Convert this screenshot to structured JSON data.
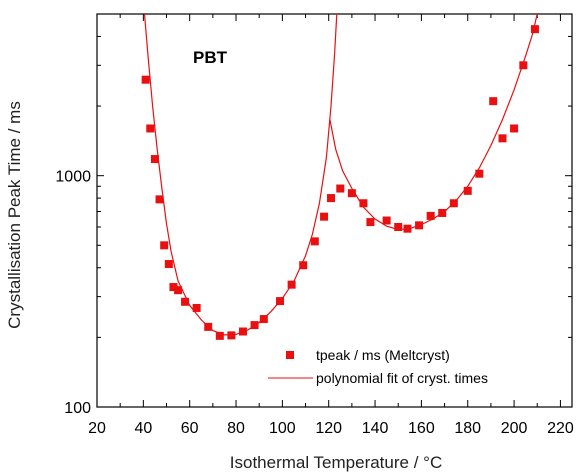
{
  "chart_data": {
    "type": "scatter",
    "title": "",
    "annotation": "PBT",
    "xlabel": "Isothermal Temperature / °C",
    "ylabel": "Crystallisation Peak Time / ms",
    "xlim": [
      20,
      225
    ],
    "ylim": [
      100,
      5000
    ],
    "yscale": "log",
    "xticks": [
      20,
      40,
      60,
      80,
      100,
      120,
      140,
      160,
      180,
      200,
      220
    ],
    "yticks": [
      100,
      1000
    ],
    "xtick_labels": [
      "20",
      "40",
      "60",
      "80",
      "100",
      "120",
      "140",
      "160",
      "180",
      "200",
      "220"
    ],
    "ytick_labels": [
      "100",
      "1000"
    ],
    "grid": false,
    "legend_position": "bottom-right",
    "colors": {
      "series": "#e81010",
      "axis": "#000000"
    },
    "series": [
      {
        "name": "tpeak / ms (Meltcryst)",
        "kind": "scatter",
        "marker": "square",
        "points": [
          [
            41,
            2600
          ],
          [
            43,
            1600
          ],
          [
            45,
            1180
          ],
          [
            47,
            790
          ],
          [
            49,
            500
          ],
          [
            51,
            415
          ],
          [
            53,
            330
          ],
          [
            55,
            320
          ],
          [
            58,
            285
          ],
          [
            63,
            268
          ],
          [
            68,
            222
          ],
          [
            73,
            203
          ],
          [
            78,
            204
          ],
          [
            83,
            212
          ],
          [
            88,
            226
          ],
          [
            92,
            240
          ],
          [
            99,
            287
          ],
          [
            104,
            338
          ],
          [
            109,
            410
          ],
          [
            114,
            520
          ],
          [
            118,
            665
          ],
          [
            121,
            800
          ],
          [
            125,
            880
          ],
          [
            130,
            840
          ],
          [
            135,
            760
          ],
          [
            138,
            630
          ],
          [
            145,
            640
          ],
          [
            150,
            600
          ],
          [
            154,
            590
          ],
          [
            159,
            610
          ],
          [
            164,
            670
          ],
          [
            169,
            690
          ],
          [
            174,
            760
          ],
          [
            180,
            860
          ],
          [
            185,
            1020
          ],
          [
            191,
            2100
          ],
          [
            195,
            1450
          ],
          [
            200,
            1600
          ],
          [
            204,
            3000
          ],
          [
            209,
            4300
          ]
        ]
      },
      {
        "name": "polynomial fit of cryst. times",
        "kind": "line",
        "segments": [
          [
            [
              40.5,
              5000
            ],
            [
              42,
              3300
            ],
            [
              44,
              2000
            ],
            [
              46,
              1300
            ],
            [
              48,
              880
            ],
            [
              50,
              620
            ],
            [
              52,
              470
            ],
            [
              55,
              350
            ],
            [
              60,
              275
            ],
            [
              65,
              238
            ],
            [
              70,
              214
            ],
            [
              75,
              205
            ],
            [
              80,
              206
            ],
            [
              85,
              215
            ],
            [
              90,
              232
            ],
            [
              95,
              258
            ],
            [
              100,
              295
            ],
            [
              105,
              350
            ],
            [
              110,
              450
            ],
            [
              113,
              560
            ],
            [
              116,
              760
            ],
            [
              119,
              1200
            ],
            [
              121,
              2000
            ],
            [
              122.5,
              3300
            ],
            [
              123.5,
              5000
            ]
          ],
          [
            [
              120.5,
              1750
            ],
            [
              123,
              1300
            ],
            [
              126,
              1050
            ],
            [
              130,
              880
            ],
            [
              135,
              730
            ],
            [
              140,
              650
            ],
            [
              145,
              605
            ],
            [
              150,
              585
            ],
            [
              155,
              590
            ],
            [
              160,
              615
            ],
            [
              165,
              650
            ],
            [
              170,
              700
            ],
            [
              175,
              780
            ],
            [
              180,
              900
            ],
            [
              185,
              1080
            ],
            [
              190,
              1350
            ],
            [
              195,
              1750
            ],
            [
              200,
              2350
            ],
            [
              205,
              3300
            ],
            [
              208,
              4100
            ],
            [
              210,
              5000
            ]
          ]
        ]
      }
    ]
  }
}
